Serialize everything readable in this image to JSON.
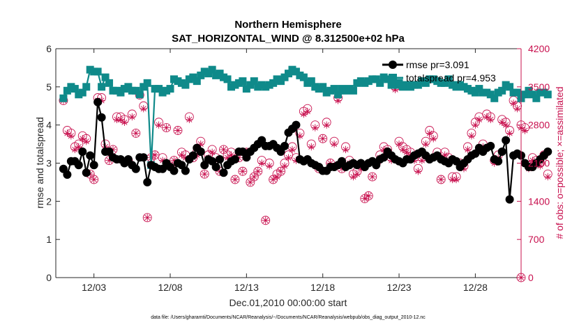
{
  "chart_data": {
    "type": "line",
    "title": [
      "Northern Hemisphere",
      "SAT_HORIZONTAL_WIND @ 8.312500e+02 hPa"
    ],
    "xlabel": "Dec.01,2010 00:00:00 start",
    "ylabel": "rmse and totalspread",
    "ylabel_right": "# of obs: o=possible; ×=assimilated",
    "footnote": "data file: /Users/gharamti/Documents/NCAR/Reanalysis/~/Documents/NCAR/Reanalysis/webpub/obs_diag_output_2010-12.nc",
    "xlim": [
      0.5,
      31.0
    ],
    "ylim": [
      0,
      6
    ],
    "ylim_right": [
      0,
      4200
    ],
    "x_ticks": [
      3,
      8,
      13,
      18,
      23,
      28
    ],
    "x_tick_labels": [
      "12/03",
      "12/08",
      "12/13",
      "12/18",
      "12/23",
      "12/28"
    ],
    "y_ticks": [
      0,
      1,
      2,
      3,
      4,
      5,
      6
    ],
    "y_tick_labels": [
      "0",
      "1",
      "2",
      "3",
      "4",
      "5",
      "6"
    ],
    "y_right_ticks": [
      0,
      700,
      1400,
      2100,
      2800,
      3500,
      4200
    ],
    "y_right_tick_labels": [
      "0",
      "700",
      "1400",
      "2100",
      "2800",
      "3500",
      "4200"
    ],
    "legend": [
      {
        "name": "rmse pr=3.091",
        "color": "#000000"
      },
      {
        "name": "totalspread pr=4.953",
        "color": "#0f8a8a"
      }
    ],
    "colors": {
      "rmse": "#000000",
      "spread": "#0f8a8a",
      "obs": "#c8104e"
    },
    "series": [
      {
        "name": "rmse",
        "values": [
          2.85,
          2.7,
          3.05,
          3.05,
          2.95,
          3.3,
          2.75,
          3.2,
          2.95,
          4.6,
          4.2,
          3.3,
          3.3,
          3.15,
          3.1,
          3.1,
          3.0,
          3.1,
          2.95,
          2.85,
          3.15,
          3.15,
          2.5,
          2.95,
          2.9,
          2.85,
          2.85,
          3.0,
          2.9,
          2.8,
          3.0,
          2.95,
          2.8,
          3.1,
          3.2,
          3.4,
          3.3,
          2.95,
          3.1,
          3.05,
          2.9,
          3.1,
          2.75,
          2.95,
          3.05,
          3.1,
          3.3,
          3.3,
          3.15,
          3.3,
          3.4,
          3.5,
          3.6,
          3.45,
          3.45,
          3.5,
          3.4,
          3.3,
          3.45,
          3.8,
          3.9,
          4.0,
          3.1,
          3.05,
          3.1,
          3.0,
          2.95,
          2.9,
          2.8,
          2.8,
          2.9,
          2.9,
          2.95,
          3.05,
          2.9,
          2.95,
          3.0,
          2.95,
          3.0,
          2.9,
          3.0,
          3.05,
          2.95,
          3.1,
          3.15,
          3.3,
          3.2,
          3.1,
          3.05,
          3.0,
          3.1,
          3.1,
          3.2,
          3.25,
          3.3,
          3.2,
          3.1,
          3.15,
          3.2,
          3.1,
          3.05,
          3.0,
          3.1,
          3.05,
          2.9,
          3.0,
          3.1,
          3.2,
          3.25,
          3.4,
          3.3,
          3.4,
          3.45,
          3.1,
          3.05,
          3.3,
          3.6,
          2.05,
          3.2,
          3.25,
          3.2,
          3.0,
          2.9,
          2.9,
          3.0,
          3.1,
          3.2,
          3.3
        ]
      },
      {
        "name": "totalspread",
        "values": [
          4.7,
          4.9,
          5.0,
          4.95,
          4.8,
          4.85,
          5.0,
          5.45,
          5.4,
          5.4,
          5.0,
          5.25,
          5.1,
          4.9,
          4.9,
          4.85,
          4.95,
          5.0,
          4.9,
          4.9,
          4.8,
          5.0,
          5.1,
          2.95,
          4.95,
          4.95,
          4.85,
          4.9,
          4.95,
          5.2,
          5.15,
          5.1,
          5.05,
          5.2,
          5.25,
          5.15,
          5.3,
          5.4,
          5.35,
          5.45,
          5.3,
          5.35,
          5.25,
          5.2,
          5.0,
          5.05,
          5.1,
          5.15,
          4.95,
          5.05,
          5.15,
          5.0,
          5.05,
          5.0,
          5.05,
          5.1,
          5.2,
          5.15,
          5.25,
          5.35,
          5.45,
          5.4,
          5.3,
          5.25,
          5.1,
          5.15,
          5.0,
          4.95,
          5.0,
          4.85,
          4.9,
          4.95,
          4.8,
          4.95,
          4.9,
          4.95,
          4.9,
          5.1,
          5.15,
          5.1,
          5.15,
          5.2,
          5.2,
          5.1,
          5.25,
          5.2,
          5.05,
          5.05,
          5.1,
          5.0,
          5.05,
          5.0,
          5.05,
          5.05,
          5.15,
          5.1,
          5.2,
          5.2,
          5.15,
          5.1,
          5.1,
          5.2,
          5.05,
          5.0,
          5.05,
          5.0,
          4.95,
          4.9,
          4.85,
          4.95,
          4.85,
          4.85,
          4.8,
          4.7,
          4.85,
          4.9,
          5.05,
          5.0,
          4.85,
          4.85,
          4.7,
          4.8,
          4.9,
          4.8,
          4.7,
          4.85,
          4.85,
          4.8
        ]
      },
      {
        "name": "obs_possible",
        "axis": "right",
        "values": [
          3250,
          2700,
          2650,
          2400,
          2450,
          2600,
          2550,
          1900,
          1800,
          3300,
          3300,
          2450,
          2150,
          2350,
          2950,
          2950,
          2900,
          2150,
          3000,
          2650,
          3350,
          3150,
          1100,
          2200,
          2250,
          2850,
          2200,
          2750,
          2050,
          2150,
          2700,
          2300,
          2250,
          2950,
          2200,
          2300,
          2500,
          1900,
          2250,
          2350,
          2200,
          1950,
          2350,
          2250,
          2300,
          1800,
          2200,
          1950,
          2300,
          1750,
          1850,
          1950,
          2150,
          1050,
          2100,
          1800,
          1900,
          1950,
          2100,
          2250,
          2400,
          2200,
          2650,
          3050,
          3100,
          2450,
          2800,
          2000,
          2550,
          2850,
          2100,
          2500,
          3300,
          2000,
          2400,
          2150,
          1900,
          1950,
          2050,
          1450,
          1500,
          1850,
          2100,
          2250,
          2400,
          2350,
          2200,
          3500,
          2500,
          2400,
          2350,
          2300,
          2200,
          2000,
          2200,
          2500,
          2700,
          2600,
          2300,
          1800,
          2300,
          2200,
          1850,
          1850,
          2100,
          2050,
          2400,
          2650,
          2850,
          2950,
          2450,
          3000,
          2950,
          2150,
          2250,
          2900,
          2850,
          2700,
          3250,
          3150,
          2800,
          2750,
          2050,
          2200,
          2150,
          2100,
          2250,
          1900
        ]
      },
      {
        "name": "obs_assimilated",
        "axis": "right",
        "values": [
          3250,
          2650,
          2600,
          2350,
          2400,
          2550,
          2500,
          1900,
          1800,
          3250,
          3250,
          2400,
          2150,
          2350,
          2900,
          2900,
          2850,
          2150,
          2950,
          2650,
          3350,
          3100,
          1100,
          2200,
          2250,
          2800,
          2150,
          2750,
          2050,
          2150,
          2700,
          2250,
          2200,
          2900,
          2200,
          2250,
          2450,
          1900,
          2200,
          2300,
          2150,
          1950,
          2350,
          2200,
          2250,
          1800,
          2200,
          1950,
          2300,
          1750,
          1850,
          1950,
          2100,
          1050,
          2050,
          1800,
          1850,
          1950,
          2050,
          2200,
          2350,
          2150,
          2600,
          3000,
          3050,
          2400,
          2750,
          2000,
          2550,
          2800,
          2100,
          2450,
          3250,
          2000,
          2350,
          2100,
          1850,
          1900,
          2000,
          1450,
          1500,
          1850,
          2050,
          2200,
          2350,
          2300,
          2150,
          3450,
          2450,
          2350,
          2300,
          2250,
          2150,
          1950,
          2150,
          2450,
          2650,
          2550,
          2250,
          1800,
          2250,
          2150,
          1800,
          1800,
          2050,
          2000,
          2350,
          2600,
          2800,
          2900,
          2400,
          2950,
          2900,
          2100,
          2200,
          2850,
          2800,
          2650,
          3200,
          3100,
          2750,
          2700,
          2000,
          2150,
          2100,
          2050,
          2200,
          1850
        ]
      },
      {
        "name": "obs_end_marker",
        "axis": "right",
        "points": [
          {
            "x": 31.0,
            "possible": 0,
            "assimilated": 0
          }
        ]
      }
    ]
  }
}
